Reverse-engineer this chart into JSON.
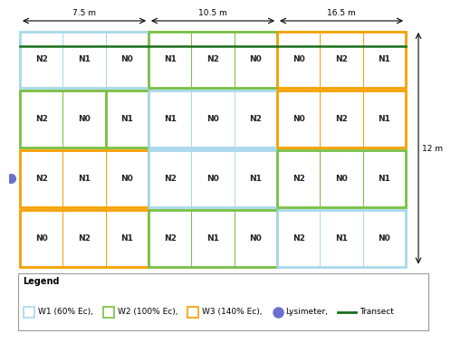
{
  "colors": {
    "transect": "#1a6e1a",
    "lysimeter": "#6b6fcf",
    "border_outer": "#cccccc",
    "background": "#ffffff"
  },
  "color_map": {
    "W1": {
      "face": "#ffffff",
      "edge": "#a8d8ea"
    },
    "W2": {
      "face": "#ffffff",
      "edge": "#7abf44"
    },
    "W3": {
      "face": "#ffffff",
      "edge": "#f5a000"
    }
  },
  "rows": [
    [
      {
        "wtype": "W1",
        "cells": [
          "N2",
          "N1",
          "N0"
        ],
        "x": 0
      },
      {
        "wtype": "W2",
        "cells": [
          "N1",
          "N2",
          "N0"
        ],
        "x": 3
      },
      {
        "wtype": "W3",
        "cells": [
          "N0",
          "N2",
          "N1"
        ],
        "x": 6
      }
    ],
    [
      {
        "wtype": "W2",
        "cells": [
          "N2",
          "N0"
        ],
        "x": 0
      },
      {
        "wtype": "W2",
        "cells": [
          "N1"
        ],
        "x": 2
      },
      {
        "wtype": "W1",
        "cells": [
          "N1",
          "N0",
          "N2"
        ],
        "x": 3
      },
      {
        "wtype": "W3",
        "cells": [
          "N0",
          "N2",
          "N1"
        ],
        "x": 6
      }
    ],
    [
      {
        "wtype": "W3",
        "cells": [
          "N2",
          "N1",
          "N0"
        ],
        "x": 0
      },
      {
        "wtype": "W1",
        "cells": [
          "N2",
          "N0",
          "N1"
        ],
        "x": 3
      },
      {
        "wtype": "W2",
        "cells": [
          "N2",
          "N0",
          "N1"
        ],
        "x": 6
      }
    ],
    [
      {
        "wtype": "W3",
        "cells": [
          "N0",
          "N2",
          "N1"
        ],
        "x": 0
      },
      {
        "wtype": "W2",
        "cells": [
          "N2",
          "N1",
          "N0"
        ],
        "x": 3
      },
      {
        "wtype": "W1",
        "cells": [
          "N2",
          "N1",
          "N0"
        ],
        "x": 6
      }
    ]
  ],
  "dim_labels": [
    "7.5 m",
    "10.5 m",
    "16.5 m"
  ],
  "dim_12": "12 m",
  "legend_items": [
    {
      "label": "W1 (60% Ec),",
      "wtype": "W1"
    },
    {
      "label": "W2 (100% Ec),",
      "wtype": "W2"
    },
    {
      "label": "W3 (140% Ec),",
      "wtype": "W3"
    }
  ],
  "n_cols": 9,
  "n_rows": 4
}
